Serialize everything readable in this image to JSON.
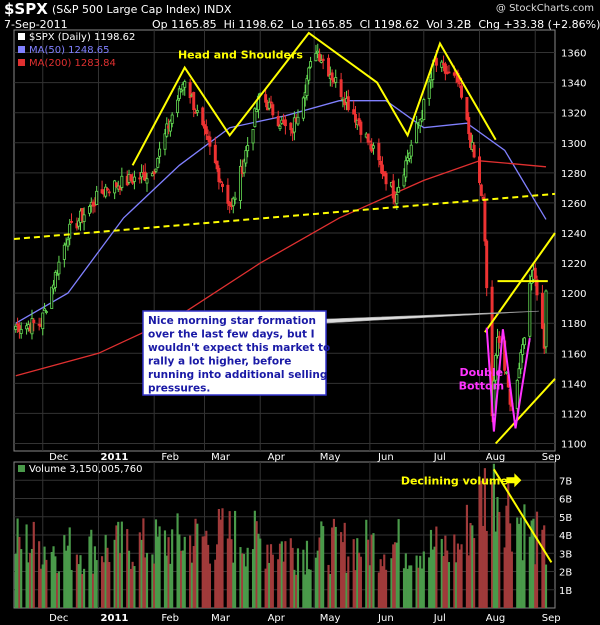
{
  "header": {
    "symbol": "$SPX",
    "name": "(S&P 500 Large Cap Index) INDX",
    "brand": "@ StockCharts.com",
    "date": "7-Sep-2011",
    "open": "Op 1165.85",
    "high": "Hi 1198.62",
    "low": "Lo 1165.85",
    "close": "Cl 1198.62",
    "volume": "Vol 3.2B",
    "change": "Chg +33.38 (+2.86%)"
  },
  "chart_data": [
    {
      "type": "candlestick",
      "legend": [
        {
          "label": "$SPX (Daily) 1198.62",
          "color": "#ffffff"
        },
        {
          "label": "MA(50) 1248.65",
          "color": "#8080ff"
        },
        {
          "label": "MA(200) 1283.84",
          "color": "#e03030"
        }
      ],
      "ylim": [
        1095,
        1375
      ],
      "yticks": [
        1100,
        1120,
        1140,
        1160,
        1180,
        1200,
        1220,
        1240,
        1260,
        1280,
        1300,
        1320,
        1340,
        1360
      ],
      "x_range": [
        "2010-11-15",
        "2011-09-12"
      ],
      "month_ticks": [
        {
          "date": "2010-12-01",
          "label": "Dec"
        },
        {
          "date": "2011-01-01",
          "label": "2011"
        },
        {
          "date": "2011-02-01",
          "label": "Feb"
        },
        {
          "date": "2011-03-01",
          "label": "Mar"
        },
        {
          "date": "2011-04-01",
          "label": "Apr"
        },
        {
          "date": "2011-05-01",
          "label": "May"
        },
        {
          "date": "2011-06-01",
          "label": "Jun"
        },
        {
          "date": "2011-07-01",
          "label": "Jul"
        },
        {
          "date": "2011-08-01",
          "label": "Aug"
        },
        {
          "date": "2011-09-01",
          "label": "Sep"
        }
      ],
      "price_path": [
        [
          "2010-11-16",
          1178
        ],
        [
          "2010-11-30",
          1180
        ],
        [
          "2010-12-15",
          1240
        ],
        [
          "2011-01-05",
          1270
        ],
        [
          "2011-01-31",
          1280
        ],
        [
          "2011-02-18",
          1343
        ],
        [
          "2011-03-01",
          1305
        ],
        [
          "2011-03-16",
          1256
        ],
        [
          "2011-04-01",
          1332
        ],
        [
          "2011-04-18",
          1305
        ],
        [
          "2011-05-02",
          1363
        ],
        [
          "2011-05-23",
          1320
        ],
        [
          "2011-06-15",
          1265
        ],
        [
          "2011-06-30",
          1320
        ],
        [
          "2011-07-07",
          1353
        ],
        [
          "2011-07-20",
          1340
        ],
        [
          "2011-07-29",
          1290
        ],
        [
          "2011-08-03",
          1260
        ],
        [
          "2011-08-08",
          1119
        ],
        [
          "2011-08-11",
          1175
        ],
        [
          "2011-08-19",
          1123
        ],
        [
          "2011-08-26",
          1175
        ],
        [
          "2011-08-31",
          1220
        ],
        [
          "2011-09-06",
          1166
        ],
        [
          "2011-09-07",
          1199
        ]
      ],
      "ma50_path": [
        [
          "2010-11-16",
          1180
        ],
        [
          "2010-12-15",
          1200
        ],
        [
          "2011-01-15",
          1250
        ],
        [
          "2011-02-15",
          1285
        ],
        [
          "2011-03-15",
          1310
        ],
        [
          "2011-04-15",
          1318
        ],
        [
          "2011-05-15",
          1328
        ],
        [
          "2011-06-10",
          1328
        ],
        [
          "2011-07-01",
          1310
        ],
        [
          "2011-07-25",
          1313
        ],
        [
          "2011-08-15",
          1295
        ],
        [
          "2011-09-07",
          1249
        ]
      ],
      "ma200_path": [
        [
          "2010-11-16",
          1145
        ],
        [
          "2011-01-01",
          1160
        ],
        [
          "2011-02-15",
          1185
        ],
        [
          "2011-04-01",
          1220
        ],
        [
          "2011-05-15",
          1250
        ],
        [
          "2011-07-01",
          1275
        ],
        [
          "2011-08-01",
          1288
        ],
        [
          "2011-08-20",
          1286
        ],
        [
          "2011-09-07",
          1284
        ]
      ],
      "annotations": [
        {
          "text": "Head and Shoulders",
          "date": "2011-03-21",
          "price": 1356,
          "color": "#ffff00"
        },
        {
          "text": "Double",
          "date": "2011-08-02",
          "price": 1145,
          "color": "#ff33ff"
        },
        {
          "text": "Bottom",
          "date": "2011-08-02",
          "price": 1136,
          "color": "#ff33ff"
        }
      ],
      "note_box": [
        "Nice morning star formation",
        "over the last few days, but I",
        "wouldn't expect this market to",
        "rally a lot higher, before",
        "running into additional selling",
        "pressures."
      ],
      "trendlines": [
        {
          "color": "#ffff00",
          "dash": false,
          "points": [
            [
              "2011-01-20",
              1285
            ],
            [
              "2011-02-18",
              1350
            ],
            [
              "2011-03-15",
              1305
            ],
            [
              "2011-04-28",
              1373
            ],
            [
              "2011-06-05",
              1340
            ],
            [
              "2011-06-22",
              1305
            ],
            [
              "2011-07-10",
              1366
            ],
            [
              "2011-08-10",
              1302
            ]
          ]
        },
        {
          "color": "#ffff00",
          "dash": true,
          "points": [
            [
              "2010-11-15",
              1236
            ],
            [
              "2011-09-12",
              1266
            ]
          ]
        },
        {
          "color": "#ffff00",
          "dash": false,
          "points": [
            [
              "2011-08-04",
              1174
            ],
            [
              "2011-09-12",
              1240
            ]
          ]
        },
        {
          "color": "#ffff00",
          "dash": false,
          "points": [
            [
              "2011-08-10",
              1100
            ],
            [
              "2011-09-12",
              1143
            ]
          ]
        },
        {
          "color": "#ffff00",
          "dash": false,
          "points": [
            [
              "2011-08-11",
              1208
            ],
            [
              "2011-09-08",
              1208
            ]
          ]
        },
        {
          "color": "#ff33ff",
          "dash": false,
          "points": [
            [
              "2011-08-05",
              1177
            ],
            [
              "2011-08-09",
              1108
            ],
            [
              "2011-08-14",
              1176
            ],
            [
              "2011-08-21",
              1110
            ],
            [
              "2011-08-29",
              1170
            ]
          ]
        }
      ]
    },
    {
      "type": "bar",
      "title": "Volume 3,150,005,760",
      "ylim": [
        0,
        8
      ],
      "yticks": [
        {
          "v": 1,
          "label": "1B"
        },
        {
          "v": 2,
          "label": "2B"
        },
        {
          "v": 3,
          "label": "3B"
        },
        {
          "v": 4,
          "label": "4B"
        },
        {
          "v": 5,
          "label": "5B"
        },
        {
          "v": 6,
          "label": "6B"
        },
        {
          "v": 7,
          "label": "7B"
        }
      ],
      "baseline_path": [
        [
          "2010-11-16",
          3.6
        ],
        [
          "2010-12-20",
          3.2
        ],
        [
          "2011-01-31",
          3.5
        ],
        [
          "2011-03-15",
          4.0
        ],
        [
          "2011-04-20",
          3.3
        ],
        [
          "2011-06-15",
          3.5
        ],
        [
          "2011-07-20",
          3.2
        ],
        [
          "2011-08-08",
          7.2
        ],
        [
          "2011-08-20",
          5.2
        ],
        [
          "2011-09-07",
          3.15
        ]
      ],
      "annotation": {
        "text": "Declining volume",
        "date": "2011-07-18",
        "value": 7.0,
        "color": "#ffff00"
      },
      "trendline": {
        "color": "#ffff00",
        "points": [
          [
            "2011-08-09",
            7.6
          ],
          [
            "2011-09-10",
            2.5
          ]
        ]
      },
      "month_ticks": [
        "Dec",
        "2011",
        "Feb",
        "Mar",
        "Apr",
        "May",
        "Jun",
        "Jul",
        "Aug",
        "Sep"
      ]
    }
  ]
}
